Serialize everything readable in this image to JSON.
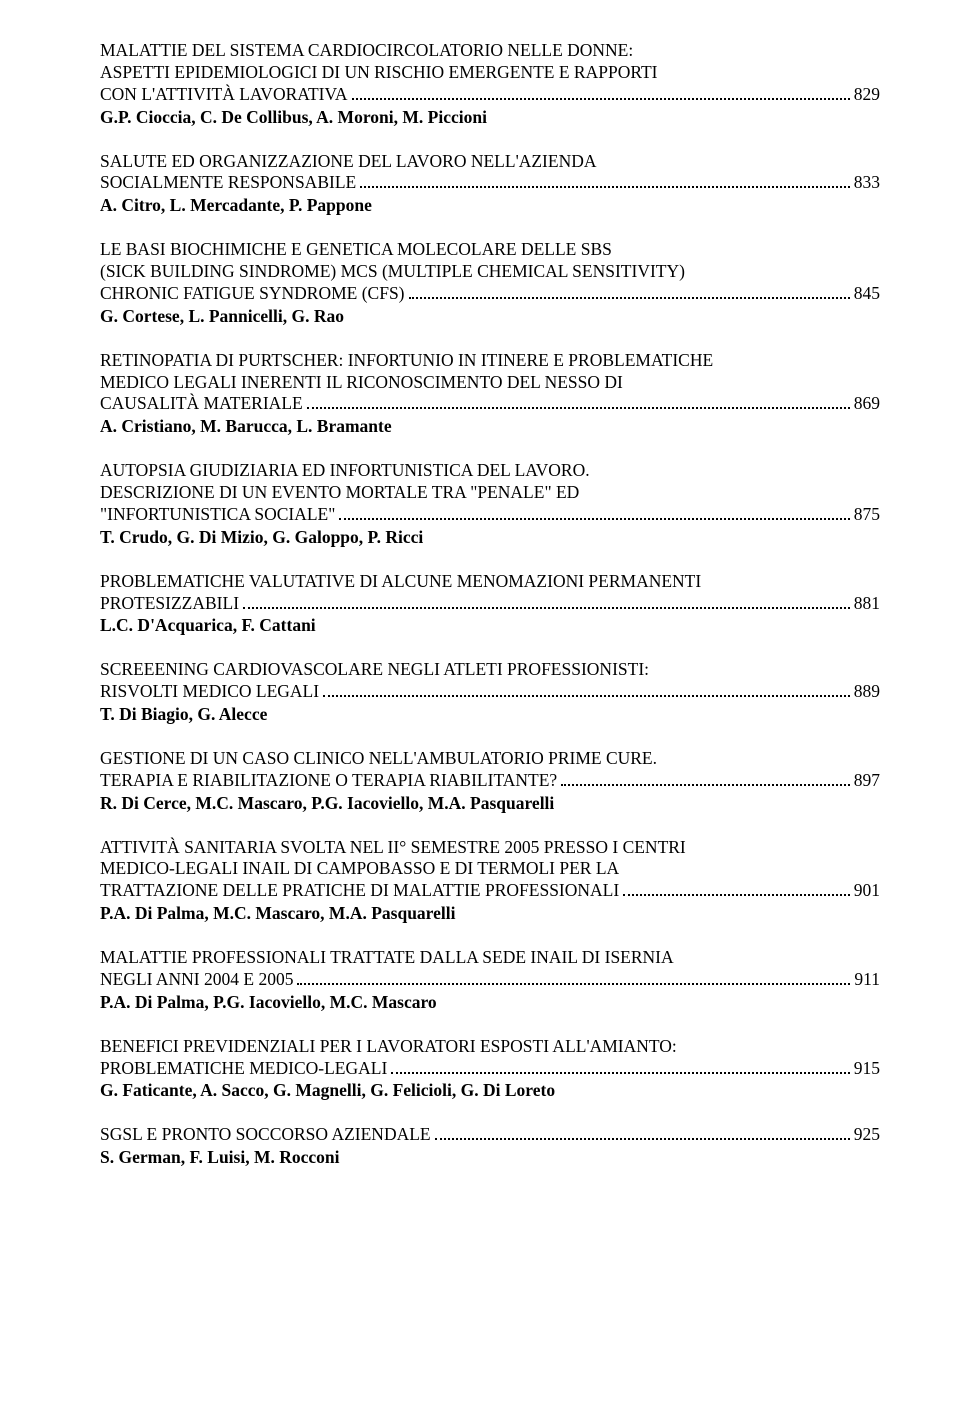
{
  "entries": [
    {
      "title_pre": [
        "MALATTIE DEL SISTEMA CARDIOCIRCOLATORIO NELLE DONNE:",
        "ASPETTI EPIDEMIOLOGICI DI UN RISCHIO EMERGENTE E RAPPORTI"
      ],
      "title_last": "CON L'ATTIVITÀ LAVORATIVA",
      "page": "829",
      "authors": "G.P. Cioccia, C. De Collibus, A. Moroni, M. Piccioni"
    },
    {
      "title_pre": [
        "SALUTE ED ORGANIZZAZIONE DEL LAVORO NELL'AZIENDA"
      ],
      "title_last": "SOCIALMENTE RESPONSABILE",
      "page": "833",
      "authors": "A. Citro, L. Mercadante, P. Pappone"
    },
    {
      "title_pre": [
        "LE BASI BIOCHIMICHE E GENETICA MOLECOLARE DELLE SBS",
        "(SICK BUILDING SINDROME) MCS (MULTIPLE CHEMICAL SENSITIVITY)"
      ],
      "title_last": "CHRONIC FATIGUE SYNDROME (CFS)",
      "page": "845",
      "authors": "G. Cortese, L. Pannicelli, G. Rao"
    },
    {
      "title_pre": [
        "RETINOPATIA DI PURTSCHER: INFORTUNIO IN ITINERE E PROBLEMATICHE",
        "MEDICO LEGALI INERENTI IL RICONOSCIMENTO DEL NESSO DI"
      ],
      "title_last": "CAUSALITÀ MATERIALE",
      "page": "869",
      "authors": "A. Cristiano, M. Barucca, L. Bramante"
    },
    {
      "title_pre": [
        "AUTOPSIA GIUDIZIARIA ED INFORTUNISTICA DEL LAVORO.",
        "DESCRIZIONE DI UN EVENTO MORTALE TRA \"PENALE\" ED"
      ],
      "title_last": "\"INFORTUNISTICA SOCIALE\"",
      "page": "875",
      "authors": "T. Crudo, G. Di Mizio, G. Galoppo, P. Ricci"
    },
    {
      "title_pre": [
        "PROBLEMATICHE VALUTATIVE DI ALCUNE MENOMAZIONI PERMANENTI"
      ],
      "title_last": "PROTESIZZABILI",
      "page": "881",
      "authors": "L.C. D'Acquarica, F. Cattani"
    },
    {
      "title_pre": [
        "SCREEENING CARDIOVASCOLARE NEGLI ATLETI PROFESSIONISTI:"
      ],
      "title_last": "RISVOLTI MEDICO LEGALI",
      "page": "889",
      "authors": "T. Di Biagio, G. Alecce"
    },
    {
      "title_pre": [
        "GESTIONE DI UN CASO CLINICO NELL'AMBULATORIO PRIME CURE."
      ],
      "title_last": "TERAPIA E RIABILITAZIONE O TERAPIA RIABILITANTE?",
      "page": "897",
      "authors": "R. Di Cerce, M.C. Mascaro, P.G. Iacoviello, M.A. Pasquarelli"
    },
    {
      "title_pre": [
        "ATTIVITÀ SANITARIA SVOLTA NEL II° SEMESTRE 2005 PRESSO I CENTRI",
        "MEDICO-LEGALI INAIL DI CAMPOBASSO E DI TERMOLI PER LA"
      ],
      "title_last": "TRATTAZIONE DELLE PRATICHE DI MALATTIE PROFESSIONALI",
      "page": "901",
      "authors": "P.A. Di Palma, M.C. Mascaro, M.A. Pasquarelli"
    },
    {
      "title_pre": [
        "MALATTIE PROFESSIONALI TRATTATE DALLA SEDE INAIL DI ISERNIA"
      ],
      "title_last": "NEGLI ANNI 2004 E 2005",
      "page": "911",
      "authors": "P.A. Di Palma, P.G. Iacoviello, M.C. Mascaro"
    },
    {
      "title_pre": [
        "BENEFICI PREVIDENZIALI PER I LAVORATORI ESPOSTI ALL'AMIANTO:"
      ],
      "title_last": "PROBLEMATICHE MEDICO-LEGALI",
      "page": "915",
      "authors": "G. Faticante, A. Sacco, G. Magnelli, G. Felicioli, G. Di Loreto"
    },
    {
      "title_pre": [],
      "title_last": "SGSL E PRONTO SOCCORSO AZIENDALE",
      "page": "925",
      "authors": "S. German, F. Luisi, M. Rocconi"
    }
  ]
}
